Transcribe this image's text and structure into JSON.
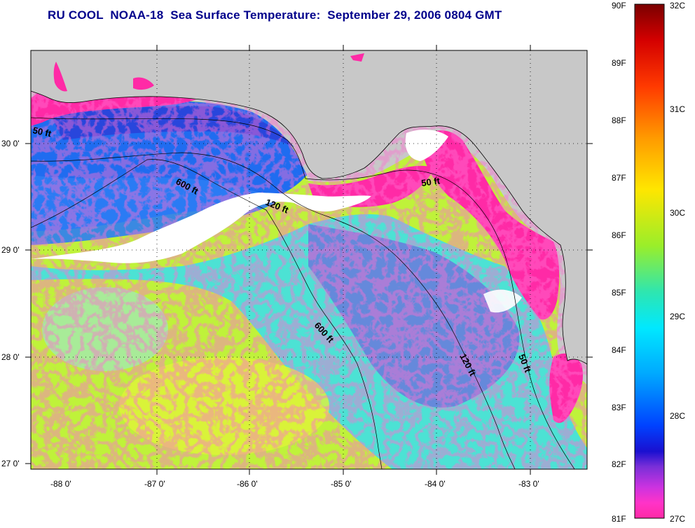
{
  "title": "RU COOL  NOAA-18  Sea Surface Temperature:  September 29, 2006 0804 GMT",
  "map": {
    "lat_ticks": [
      "30 0'",
      "29 0'",
      "28 0'",
      "27 0'"
    ],
    "lon_ticks": [
      "-88 0'",
      "-87 0'",
      "-86 0'",
      "-85 0'",
      "-84 0'",
      "-83 0'"
    ],
    "lat_range": [
      26.95,
      30.9
    ],
    "lon_range": [
      -88.35,
      -82.5
    ],
    "contour_labels": {
      "c50_west": "50 ft",
      "c600_north": "600 ft",
      "c120_north": "120 ft",
      "c50_east": "50 ft",
      "c600_south": "600 ft",
      "c120_south": "120 ft",
      "c50_south": "50 ft"
    },
    "colors": {
      "land": "#c8c8c8",
      "cloud": "#ffffff",
      "coast_cold": "#ff2aa6",
      "water_warm": "#bff23a",
      "water_mid": "#3fe0e6",
      "water_cool": "#1f6cf0",
      "water_cold": "#2a3fd8"
    }
  },
  "colorbar": {
    "fahrenheit": [
      "90F",
      "89F",
      "88F",
      "87F",
      "86F",
      "85F",
      "84F",
      "83F",
      "82F",
      "81F"
    ],
    "celsius": [
      "32C",
      "31C",
      "30C",
      "29C",
      "28C",
      "27C"
    ],
    "stops": [
      "#7a0000",
      "#d40000",
      "#ff3a00",
      "#ff9a00",
      "#ffe600",
      "#9aee2a",
      "#2ee6b0",
      "#00e8ff",
      "#00a8ff",
      "#0042ff",
      "#1a10d0",
      "#7a2fd8",
      "#cc33e0",
      "#ff33c8",
      "#ff2aa6"
    ]
  }
}
